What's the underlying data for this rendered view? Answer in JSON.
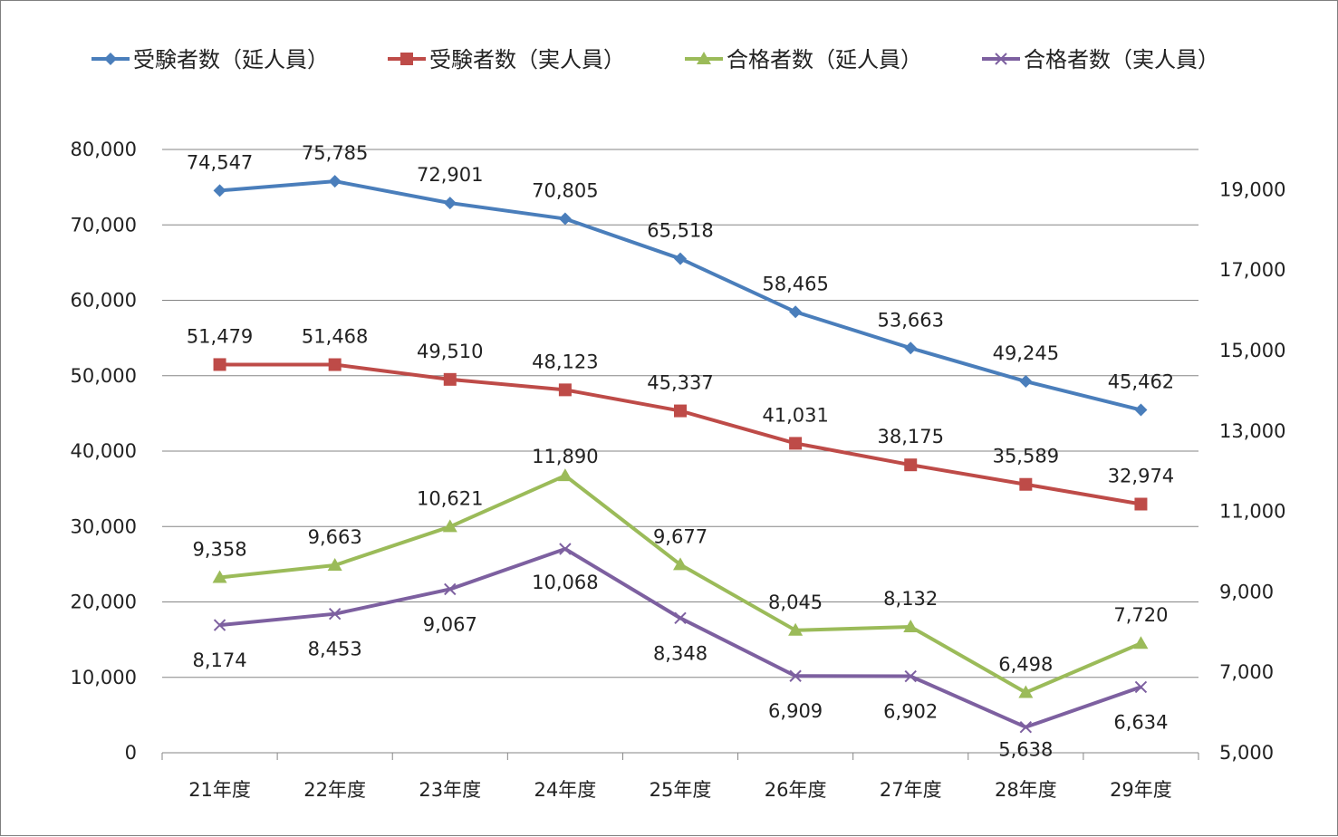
{
  "chart_data": {
    "type": "line",
    "categories": [
      "21年度",
      "22年度",
      "23年度",
      "24年度",
      "25年度",
      "26年度",
      "27年度",
      "28年度",
      "29年度"
    ],
    "y_left": {
      "min": 0,
      "max": 80000,
      "step": 10000,
      "ticks": [
        "0",
        "10,000",
        "20,000",
        "30,000",
        "40,000",
        "50,000",
        "60,000",
        "70,000",
        "80,000"
      ]
    },
    "y_right": {
      "min": 5000,
      "max": 20000,
      "ticks_values": [
        5000,
        7000,
        9000,
        11000,
        13000,
        15000,
        17000,
        19000
      ],
      "ticks": [
        "5,000",
        "7,000",
        "9,000",
        "11,000",
        "13,000",
        "15,000",
        "17,000",
        "19,000"
      ]
    },
    "grid": true,
    "legend_position": "top",
    "series": [
      {
        "name": "受験者数（延人員）",
        "axis": "left",
        "color": "#4a7ebb",
        "marker": "diamond",
        "values": [
          74547,
          75785,
          72901,
          70805,
          65518,
          58465,
          53663,
          49245,
          45462
        ],
        "labels": [
          "74,547",
          "75,785",
          "72,901",
          "70,805",
          "65,518",
          "58,465",
          "53,663",
          "49,245",
          "45,462"
        ]
      },
      {
        "name": "受験者数（実人員）",
        "axis": "left",
        "color": "#be4b48",
        "marker": "square",
        "values": [
          51479,
          51468,
          49510,
          48123,
          45337,
          41031,
          38175,
          35589,
          32974
        ],
        "labels": [
          "51,479",
          "51,468",
          "49,510",
          "48,123",
          "45,337",
          "41,031",
          "38,175",
          "35,589",
          "32,974"
        ]
      },
      {
        "name": "合格者数（延人員）",
        "axis": "right",
        "color": "#9bbb59",
        "marker": "triangle",
        "values": [
          9358,
          9663,
          10621,
          11890,
          9677,
          8045,
          8132,
          6498,
          7720
        ],
        "labels": [
          "9,358",
          "9,663",
          "10,621",
          "11,890",
          "9,677",
          "8,045",
          "8,132",
          "6,498",
          "7,720"
        ]
      },
      {
        "name": "合格者数（実人員）",
        "axis": "right",
        "color": "#7d60a0",
        "marker": "x",
        "values": [
          8174,
          8453,
          9067,
          10068,
          8348,
          6909,
          6902,
          5638,
          6634
        ],
        "labels": [
          "8,174",
          "8,453",
          "9,067",
          "10,068",
          "8,348",
          "6,909",
          "6,902",
          "5,638",
          "6,634"
        ]
      }
    ]
  }
}
